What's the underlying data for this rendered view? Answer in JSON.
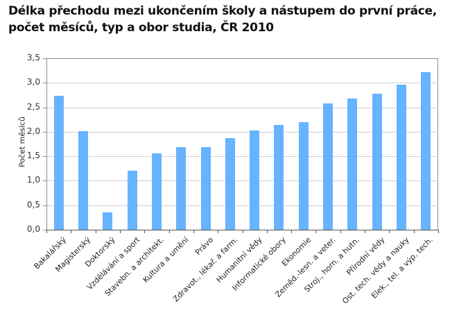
{
  "title": "Délka přechodu mezi ukončením školy a nástupem do první práce, počet měsíců, typ a obor studia, ČR 2010",
  "colors": {
    "bar": "#66b3ff",
    "grid": "#d0d0d0",
    "axis": "#8c8c8c"
  },
  "chart_data": {
    "type": "bar",
    "title": "Délka přechodu mezi ukončením školy a nástupem do první práce, počet měsíců, typ a obor studia, ČR 2010",
    "xlabel": "",
    "ylabel": "Počet měsíců",
    "ylim": [
      0,
      3.5
    ],
    "yticks": [
      "0,0",
      "0,5",
      "1,0",
      "1,5",
      "2,0",
      "2,5",
      "3,0",
      "3,5"
    ],
    "grid": true,
    "legend": null,
    "categories": [
      "Bakalářský",
      "Magisterský",
      "Doktorský",
      "Vzdělávání a sport",
      "Stavebn. a architekt.",
      "Kultura a umění",
      "Právo",
      "Zdravot., lékař. a farm.",
      "Humanitní vědy",
      "Informatické obory",
      "Ekonomie",
      "Zeměd.-lesn. a veter.",
      "Stroj., horn. a hutn.",
      "Přírodní vědy",
      "Ost. tech. vědy a nauky",
      "Elek., tel. a výp. tech."
    ],
    "values": [
      2.73,
      2.01,
      0.36,
      1.2,
      1.56,
      1.68,
      1.68,
      1.87,
      2.02,
      2.14,
      2.19,
      2.58,
      2.68,
      2.78,
      2.96,
      3.21
    ]
  }
}
